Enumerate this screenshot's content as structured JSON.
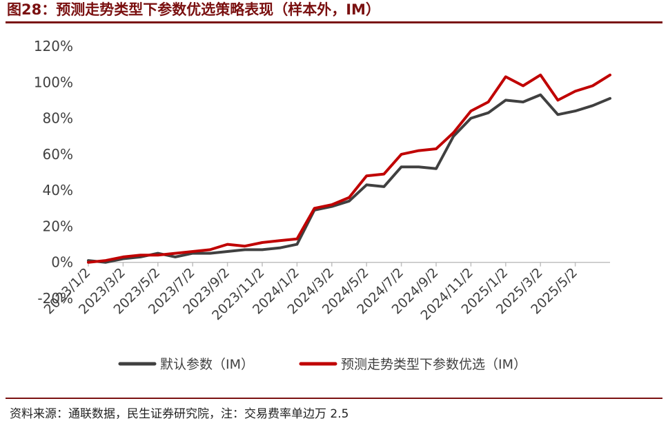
{
  "figure": {
    "title": "图28：预测走势类型下参数优选策略表现（样本外，IM）",
    "source": "资料来源：通联数据，民生证券研究院，注：交易费率单边万 2.5"
  },
  "colors": {
    "accent": "#7a1010",
    "series_default": "#404040",
    "series_optimized": "#c00000"
  },
  "chart_data": {
    "type": "line",
    "title": "",
    "xlabel": "",
    "ylabel": "",
    "ylim": [
      -20,
      120
    ],
    "ytick_labels": [
      "-20%",
      "0%",
      "20%",
      "40%",
      "60%",
      "80%",
      "100%",
      "120%"
    ],
    "xtick_labels": [
      "2023/1/2",
      "2023/3/2",
      "2023/5/2",
      "2023/7/2",
      "2023/9/2",
      "2023/11/2",
      "2024/1/2",
      "2024/3/2",
      "2024/5/2",
      "2024/7/2",
      "2024/9/2",
      "2024/11/2",
      "2025/1/2",
      "2025/3/2",
      "2025/5/2"
    ],
    "legend_position": "bottom",
    "grid": false,
    "x": [
      "2023/1/2",
      "2023/2/1",
      "2023/3/2",
      "2023/4/1",
      "2023/5/2",
      "2023/6/1",
      "2023/7/2",
      "2023/8/1",
      "2023/9/2",
      "2023/10/1",
      "2023/11/2",
      "2023/12/1",
      "2024/1/2",
      "2024/2/1",
      "2024/3/2",
      "2024/4/1",
      "2024/5/2",
      "2024/6/1",
      "2024/7/2",
      "2024/8/1",
      "2024/9/2",
      "2024/10/1",
      "2024/11/2",
      "2024/12/1",
      "2025/1/2",
      "2025/2/1",
      "2025/3/2",
      "2025/4/1",
      "2025/5/2",
      "2025/6/1",
      "2025/7/1"
    ],
    "series": [
      {
        "name": "默认参数（IM）",
        "values": [
          1,
          0,
          2,
          3,
          5,
          3,
          5,
          5,
          6,
          7,
          7,
          8,
          10,
          29,
          31,
          34,
          43,
          42,
          53,
          53,
          52,
          70,
          80,
          83,
          90,
          89,
          93,
          82,
          84,
          87,
          91
        ]
      },
      {
        "name": "预测走势类型下参数优选（IM）",
        "values": [
          0,
          1,
          3,
          4,
          4,
          5,
          6,
          7,
          10,
          9,
          11,
          12,
          13,
          30,
          32,
          36,
          48,
          49,
          60,
          62,
          63,
          72,
          84,
          89,
          103,
          98,
          104,
          90,
          95,
          98,
          104
        ]
      }
    ]
  },
  "legend": {
    "default_label": "默认参数（IM）",
    "optimized_label": "预测走势类型下参数优选（IM）"
  }
}
